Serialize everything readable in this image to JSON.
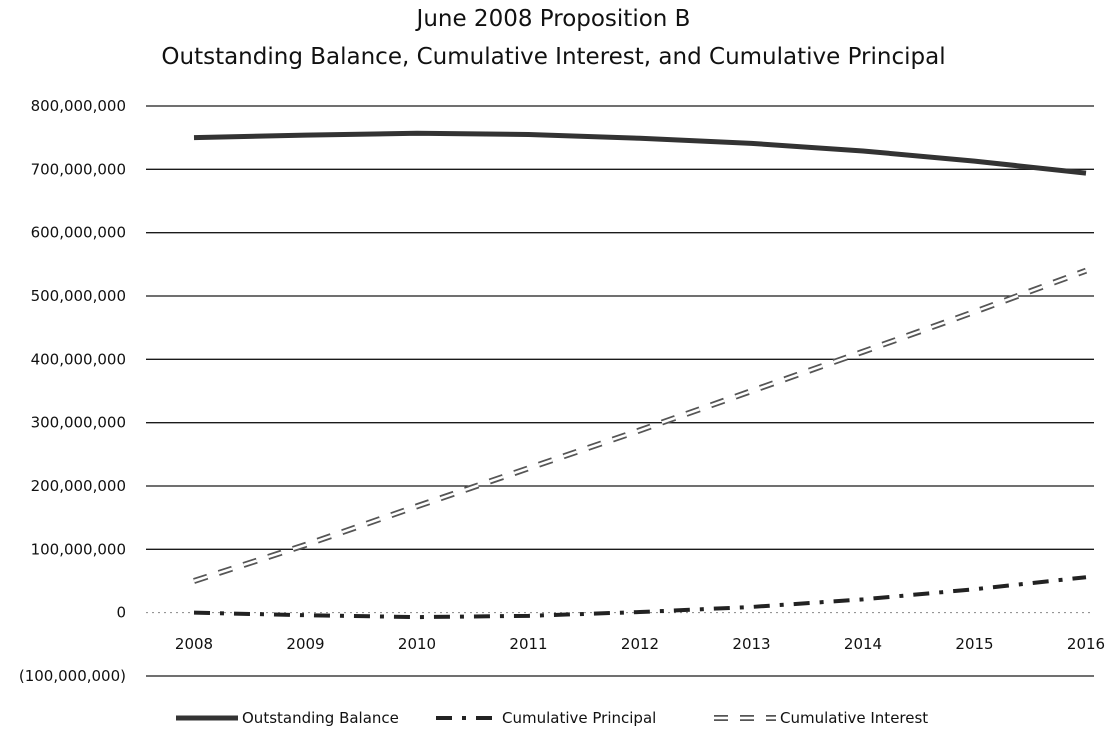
{
  "chart_data": {
    "type": "line",
    "title": "June 2008 Proposition B",
    "subtitle": "Outstanding Balance, Cumulative Interest, and Cumulative Principal",
    "xlabel": "",
    "ylabel": "",
    "categories": [
      "2008",
      "2009",
      "2010",
      "2011",
      "2012",
      "2013",
      "2014",
      "2015",
      "2016"
    ],
    "y_ticks": [
      -100000000,
      0,
      100000000,
      200000000,
      300000000,
      400000000,
      500000000,
      600000000,
      700000000,
      800000000
    ],
    "y_tick_labels": [
      "(100,000,000)",
      "0",
      "100,000,000",
      "200,000,000",
      "300,000,000",
      "400,000,000",
      "500,000,000",
      "600,000,000",
      "700,000,000",
      "800,000,000"
    ],
    "ylim": [
      -100000000,
      800000000
    ],
    "grid": true,
    "legend_position": "bottom",
    "series": [
      {
        "name": "Outstanding Balance",
        "style": "solid",
        "color": "#333333",
        "x": [
          2008,
          2009,
          2010,
          2011,
          2012,
          2013,
          2014,
          2015,
          2016
        ],
        "values": [
          750000000,
          754000000,
          757000000,
          755000000,
          749000000,
          741000000,
          729000000,
          713000000,
          694000000
        ]
      },
      {
        "name": "Cumulative Principal",
        "style": "dash-dot",
        "color": "#222222",
        "x": [
          2008,
          2009,
          2010,
          2011,
          2012,
          2013,
          2014,
          2015,
          2016
        ],
        "values": [
          0,
          -4000000,
          -7000000,
          -5000000,
          1000000,
          9000000,
          21000000,
          37000000,
          56000000
        ]
      },
      {
        "name": "Cumulative Interest",
        "style": "double-dashed",
        "color": "#555555",
        "x": [
          2008,
          2009,
          2010,
          2011,
          2012,
          2013,
          2014,
          2015,
          2016
        ],
        "values": [
          50000000,
          107000000,
          168000000,
          228000000,
          288000000,
          350000000,
          412000000,
          475000000,
          540000000
        ]
      }
    ]
  }
}
